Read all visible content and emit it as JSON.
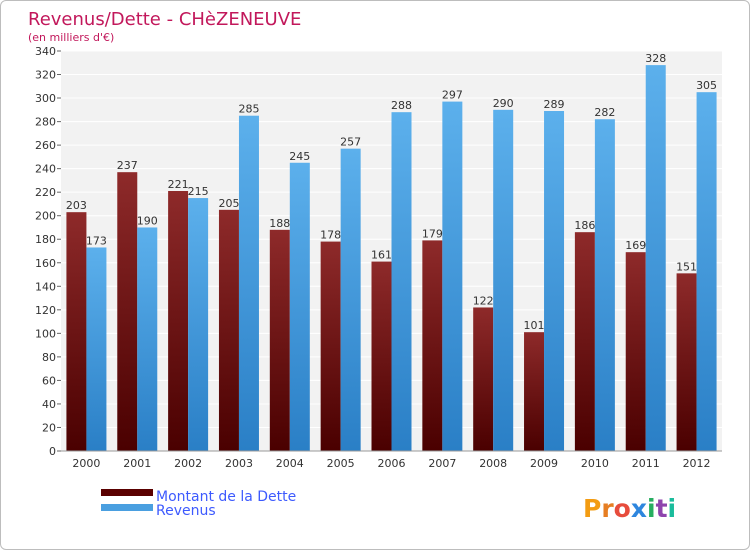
{
  "chart_data": {
    "type": "bar",
    "title": "Revenus/Dette - CHèZENEUVE",
    "subtitle": "(en milliers d'€)",
    "xlabel": "",
    "ylabel": "",
    "categories": [
      "2000",
      "2001",
      "2002",
      "2003",
      "2004",
      "2005",
      "2006",
      "2007",
      "2008",
      "2009",
      "2010",
      "2011",
      "2012"
    ],
    "series": [
      {
        "name": "Montant de la Dette",
        "color": "#7a1a1a",
        "values": [
          203,
          237,
          221,
          205,
          188,
          178,
          161,
          179,
          122,
          101,
          186,
          169,
          151
        ]
      },
      {
        "name": "Revenus",
        "color": "#4a9fe0",
        "values": [
          173,
          190,
          215,
          285,
          245,
          257,
          288,
          297,
          290,
          289,
          282,
          328,
          305
        ]
      }
    ],
    "ylim": [
      0,
      340
    ],
    "ytick_step": 20,
    "grid": true,
    "legend_position": "bottom-left"
  },
  "branding": {
    "logo_text": "Proxiti"
  },
  "colors": {
    "title": "#c2185b",
    "legend_text": "#3d5afe",
    "plot_bg": "#f2f2f2",
    "grid": "#ffffff",
    "axis_text": "#333333"
  }
}
